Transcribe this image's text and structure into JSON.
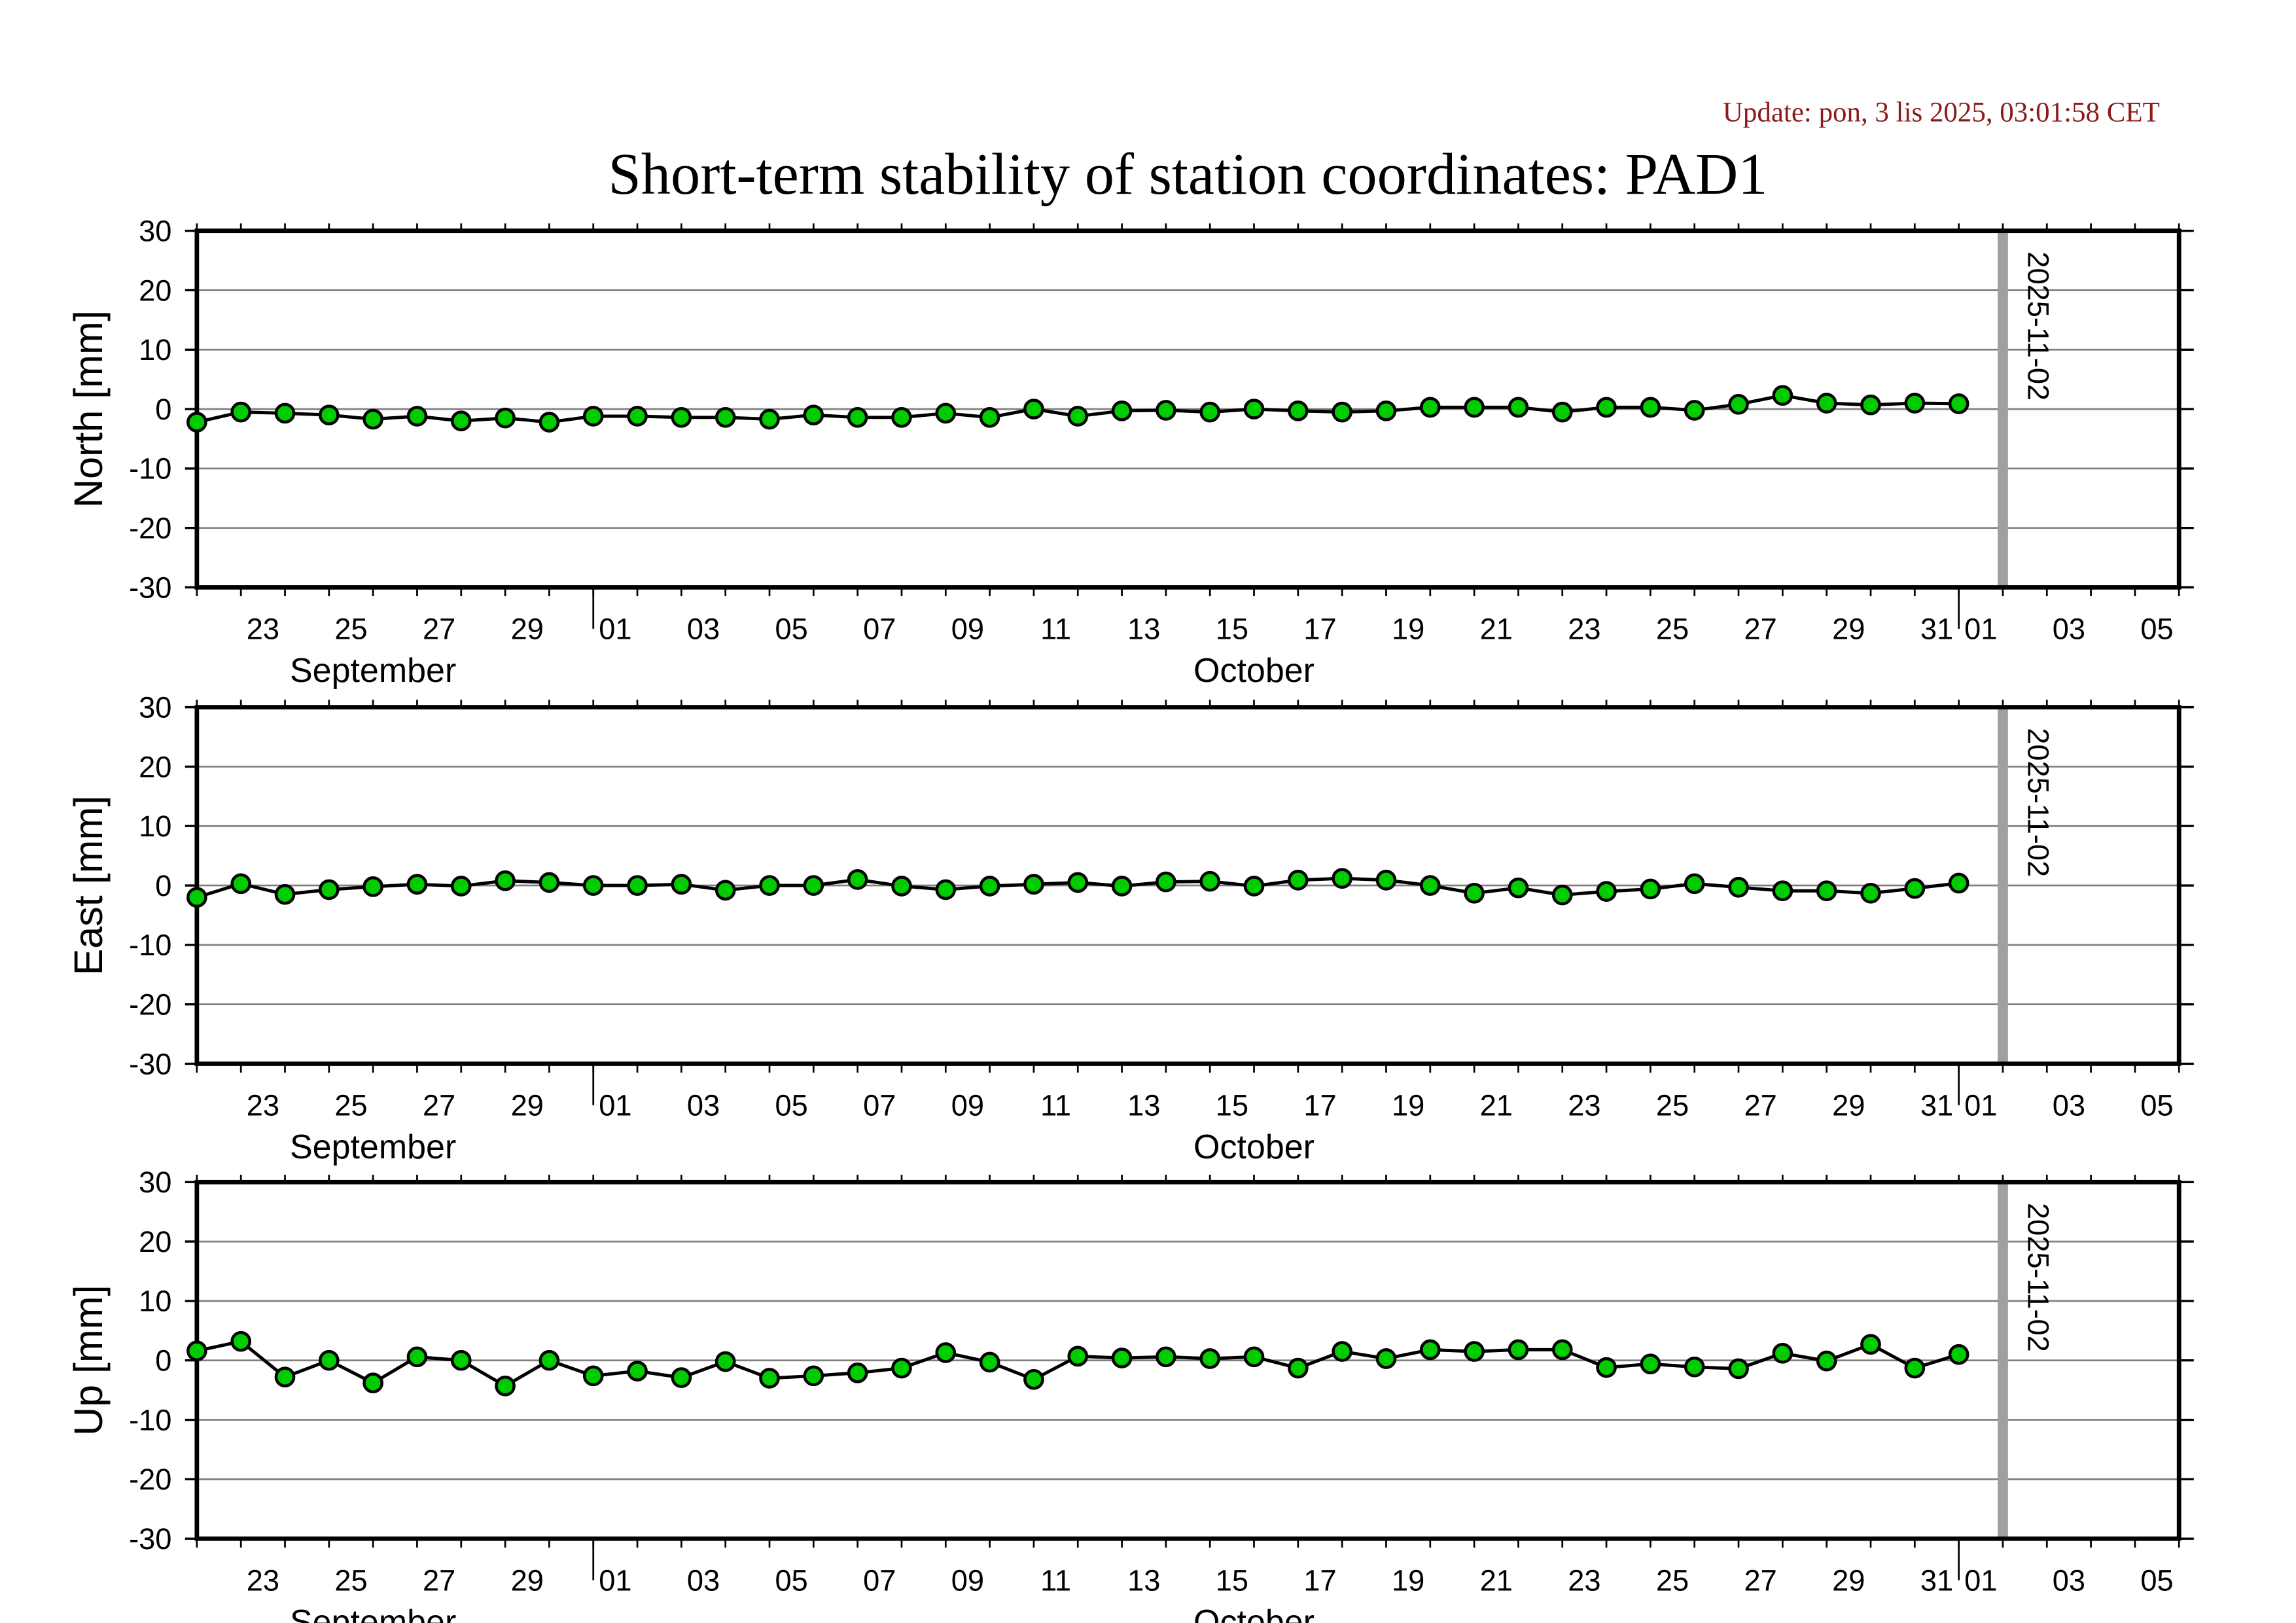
{
  "update_text": "Update: pon, 3 lis 2025, 03:01:58 CET",
  "colors": {
    "update": "#8b1a1a",
    "marker": "#00cc00",
    "line": "#000000",
    "grid": "#808080",
    "event_line": "#a0a0a0"
  },
  "chart_data": {
    "title": "Short-term stability of station coordinates: PAD1",
    "type": "line",
    "x_dates": [
      "2025-09-22",
      "2025-09-23",
      "2025-09-24",
      "2025-09-25",
      "2025-09-26",
      "2025-09-27",
      "2025-09-28",
      "2025-09-29",
      "2025-09-30",
      "2025-10-01",
      "2025-10-02",
      "2025-10-03",
      "2025-10-04",
      "2025-10-05",
      "2025-10-06",
      "2025-10-07",
      "2025-10-08",
      "2025-10-09",
      "2025-10-10",
      "2025-10-11",
      "2025-10-12",
      "2025-10-13",
      "2025-10-14",
      "2025-10-15",
      "2025-10-16",
      "2025-10-17",
      "2025-10-18",
      "2025-10-19",
      "2025-10-20",
      "2025-10-21",
      "2025-10-22",
      "2025-10-23",
      "2025-10-24",
      "2025-10-25",
      "2025-10-26",
      "2025-10-27",
      "2025-10-28",
      "2025-10-29",
      "2025-10-30",
      "2025-10-31",
      "2025-11-01"
    ],
    "xlim": [
      "2025-09-22",
      "2025-11-06"
    ],
    "ylim": [
      -30,
      30
    ],
    "yticks": [
      -30,
      -20,
      -10,
      0,
      10,
      20,
      30
    ],
    "grid": true,
    "x_tick_labels": [
      {
        "date": "2025-09-23",
        "label": "23"
      },
      {
        "date": "2025-09-25",
        "label": "25"
      },
      {
        "date": "2025-09-27",
        "label": "27"
      },
      {
        "date": "2025-09-29",
        "label": "29"
      },
      {
        "date": "2025-10-01",
        "label": "01"
      },
      {
        "date": "2025-10-03",
        "label": "03"
      },
      {
        "date": "2025-10-05",
        "label": "05"
      },
      {
        "date": "2025-10-07",
        "label": "07"
      },
      {
        "date": "2025-10-09",
        "label": "09"
      },
      {
        "date": "2025-10-11",
        "label": "11"
      },
      {
        "date": "2025-10-13",
        "label": "13"
      },
      {
        "date": "2025-10-15",
        "label": "15"
      },
      {
        "date": "2025-10-17",
        "label": "17"
      },
      {
        "date": "2025-10-19",
        "label": "19"
      },
      {
        "date": "2025-10-21",
        "label": "21"
      },
      {
        "date": "2025-10-23",
        "label": "23"
      },
      {
        "date": "2025-10-25",
        "label": "25"
      },
      {
        "date": "2025-10-27",
        "label": "27"
      },
      {
        "date": "2025-10-29",
        "label": "29"
      },
      {
        "date": "2025-10-31",
        "label": "31"
      },
      {
        "date": "2025-11-01",
        "label": "01"
      },
      {
        "date": "2025-11-03",
        "label": "03"
      },
      {
        "date": "2025-11-05",
        "label": "05"
      }
    ],
    "month_labels": [
      {
        "date": "2025-09-26",
        "label": "September"
      },
      {
        "date": "2025-10-16",
        "label": "October"
      }
    ],
    "event_marker": {
      "date": "2025-11-02",
      "label": "2025-11-02"
    },
    "panels": [
      {
        "ylabel": "North [mm]",
        "values": [
          -2.2,
          -0.5,
          -0.7,
          -1.0,
          -1.7,
          -1.2,
          -2.0,
          -1.5,
          -2.2,
          -1.2,
          -1.2,
          -1.4,
          -1.4,
          -1.7,
          -1.0,
          -1.4,
          -1.4,
          -0.7,
          -1.4,
          0.0,
          -1.2,
          -0.3,
          -0.2,
          -0.5,
          0.0,
          -0.3,
          -0.5,
          -0.3,
          0.3,
          0.3,
          0.3,
          -0.5,
          0.3,
          0.3,
          -0.2,
          0.8,
          2.3,
          1.0,
          0.7,
          1.0,
          0.9
        ]
      },
      {
        "ylabel": "East [mm]",
        "values": [
          -2.0,
          0.3,
          -1.5,
          -0.7,
          -0.2,
          0.2,
          -0.1,
          0.8,
          0.5,
          0.0,
          0.0,
          0.2,
          -0.8,
          0.0,
          0.0,
          1.0,
          -0.1,
          -0.7,
          -0.1,
          0.2,
          0.5,
          -0.1,
          0.6,
          0.7,
          -0.1,
          0.9,
          1.2,
          0.9,
          0.0,
          -1.3,
          -0.4,
          -1.6,
          -1.0,
          -0.6,
          0.3,
          -0.3,
          -0.9,
          -0.9,
          -1.3,
          -0.5,
          0.4
        ]
      },
      {
        "ylabel": "Up [mm]",
        "values": [
          1.6,
          3.2,
          -2.8,
          0.0,
          -3.8,
          0.6,
          0.0,
          -4.3,
          0.0,
          -2.6,
          -1.8,
          -2.9,
          -0.2,
          -3.0,
          -2.6,
          -2.1,
          -1.3,
          1.3,
          -0.3,
          -3.2,
          0.7,
          0.4,
          0.6,
          0.3,
          0.6,
          -1.3,
          1.5,
          0.3,
          1.8,
          1.5,
          1.8,
          1.8,
          -1.2,
          -0.6,
          -1.1,
          -1.4,
          1.2,
          -0.1,
          2.7,
          -1.3,
          1.0
        ]
      }
    ]
  }
}
